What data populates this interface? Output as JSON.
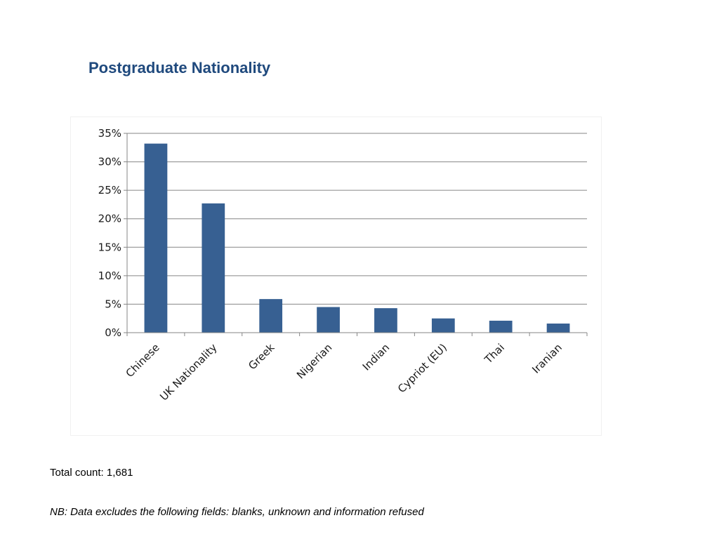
{
  "slide": {
    "title": "Postgraduate Nationality",
    "total_count": "Total count: 1,681",
    "footnote": "NB: Data excludes the following fields: blanks, unknown and information refused"
  },
  "chart_data": {
    "type": "bar",
    "title": "",
    "xlabel": "",
    "ylabel": "",
    "categories": [
      "Chinese",
      "UK Nationality",
      "Greek",
      "Nigerian",
      "Indian",
      "Cypriot (EU)",
      "Thai",
      "Iranian"
    ],
    "values": [
      33.2,
      22.7,
      5.9,
      4.5,
      4.3,
      2.5,
      2.1,
      1.6
    ],
    "ylim": [
      0,
      35
    ],
    "yticks": [
      0,
      5,
      10,
      15,
      20,
      25,
      30,
      35
    ],
    "ytick_labels": [
      "0%",
      "5%",
      "10%",
      "15%",
      "20%",
      "25%",
      "30%",
      "35%"
    ],
    "grid": true,
    "legend": "none",
    "colors": {
      "bar": "#376092",
      "grid": "#868686",
      "axis": "#868686",
      "title": "#1f497d"
    }
  }
}
